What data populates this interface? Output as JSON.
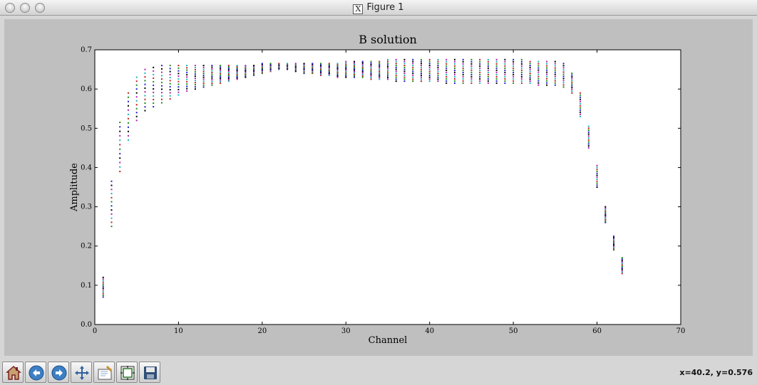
{
  "window": {
    "title": "Figure 1",
    "title_logo": "X"
  },
  "toolbar": {
    "buttons": [
      {
        "name": "home-button",
        "icon": "home-icon"
      },
      {
        "name": "back-button",
        "icon": "back-arrow-icon"
      },
      {
        "name": "forward-button",
        "icon": "forward-arrow-icon"
      },
      {
        "name": "pan-button",
        "icon": "move-icon"
      },
      {
        "name": "zoom-button",
        "icon": "zoom-rect-icon"
      },
      {
        "name": "subplots-button",
        "icon": "subplots-icon"
      },
      {
        "name": "save-button",
        "icon": "floppy-disk-icon"
      }
    ],
    "coordinates": "x=40.2, y=0.576"
  },
  "chart_data": {
    "type": "scatter",
    "title": "B solution",
    "xlabel": "Channel",
    "ylabel": "Amplitude",
    "xlim": [
      0,
      70
    ],
    "ylim": [
      0.0,
      0.7
    ],
    "xticks": [
      "0",
      "10",
      "20",
      "30",
      "40",
      "50",
      "60",
      "70"
    ],
    "yticks": [
      "0.0",
      "0.1",
      "0.2",
      "0.3",
      "0.4",
      "0.5",
      "0.6",
      "0.7"
    ],
    "grid": false,
    "marker_colors": [
      "#1f1fd0",
      "#1a8a1a",
      "#c21f1f",
      "#19b3b3",
      "#b21fb2",
      "#000000"
    ],
    "x": [
      1,
      2,
      3,
      4,
      5,
      6,
      7,
      8,
      9,
      10,
      11,
      12,
      13,
      14,
      15,
      16,
      17,
      18,
      19,
      20,
      21,
      22,
      23,
      24,
      25,
      26,
      27,
      28,
      29,
      30,
      31,
      32,
      33,
      34,
      35,
      36,
      37,
      38,
      39,
      40,
      41,
      42,
      43,
      44,
      45,
      46,
      47,
      48,
      49,
      50,
      51,
      52,
      53,
      54,
      55,
      56,
      57,
      58,
      59,
      60,
      61,
      62,
      63
    ],
    "y_min": [
      0.07,
      0.25,
      0.39,
      0.47,
      0.52,
      0.545,
      0.555,
      0.565,
      0.575,
      0.585,
      0.595,
      0.6,
      0.605,
      0.61,
      0.615,
      0.62,
      0.625,
      0.63,
      0.635,
      0.64,
      0.645,
      0.65,
      0.65,
      0.645,
      0.64,
      0.64,
      0.635,
      0.635,
      0.63,
      0.63,
      0.63,
      0.63,
      0.625,
      0.625,
      0.625,
      0.62,
      0.62,
      0.62,
      0.62,
      0.62,
      0.62,
      0.615,
      0.615,
      0.615,
      0.615,
      0.615,
      0.615,
      0.615,
      0.615,
      0.615,
      0.615,
      0.615,
      0.61,
      0.61,
      0.61,
      0.605,
      0.59,
      0.53,
      0.45,
      0.35,
      0.26,
      0.19,
      0.13
    ],
    "y_max": [
      0.12,
      0.365,
      0.515,
      0.59,
      0.63,
      0.65,
      0.655,
      0.66,
      0.66,
      0.66,
      0.66,
      0.66,
      0.66,
      0.66,
      0.66,
      0.66,
      0.66,
      0.66,
      0.66,
      0.665,
      0.665,
      0.665,
      0.665,
      0.665,
      0.665,
      0.665,
      0.665,
      0.665,
      0.665,
      0.67,
      0.67,
      0.67,
      0.67,
      0.67,
      0.675,
      0.675,
      0.675,
      0.675,
      0.675,
      0.675,
      0.675,
      0.675,
      0.675,
      0.675,
      0.675,
      0.675,
      0.675,
      0.675,
      0.675,
      0.675,
      0.675,
      0.67,
      0.67,
      0.67,
      0.67,
      0.665,
      0.64,
      0.59,
      0.505,
      0.405,
      0.3,
      0.225,
      0.17
    ]
  }
}
